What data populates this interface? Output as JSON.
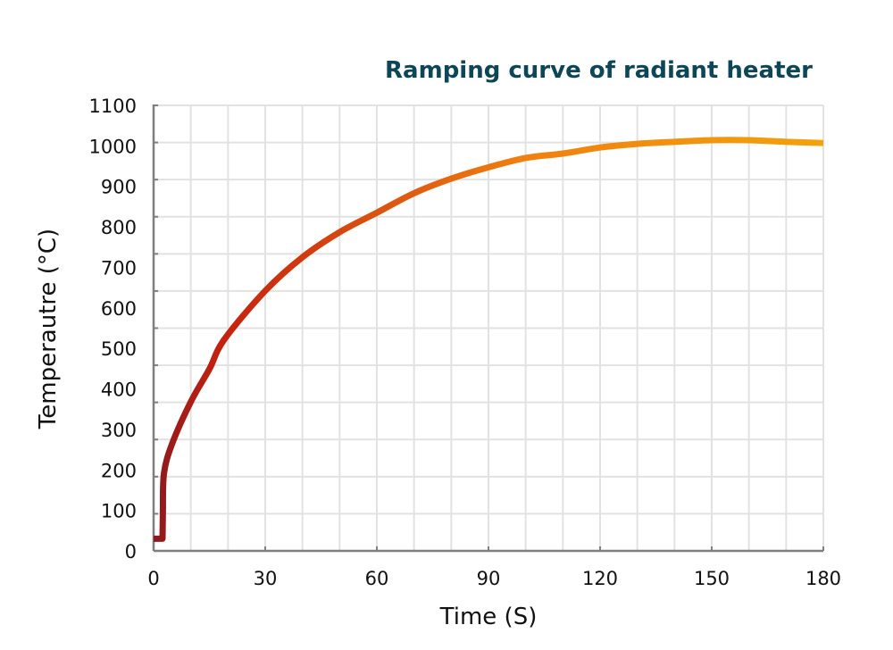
{
  "chart_data": {
    "type": "line",
    "title": "Ramping curve of radiant heater",
    "xlabel": "Time (S)",
    "ylabel": "Temperautre (°C)",
    "xlim": [
      0,
      180
    ],
    "ylim": [
      0,
      1100
    ],
    "x_ticks": [
      0,
      30,
      60,
      90,
      120,
      150,
      180
    ],
    "y_ticks": [
      0,
      100,
      200,
      300,
      400,
      500,
      600,
      700,
      800,
      900,
      1000,
      1100
    ],
    "grid": true,
    "legend": "none",
    "colors": {
      "start": "#8b1a1f",
      "mid": "#e84a0c",
      "end": "#f2a20c",
      "title": "#0d4656",
      "grid": "#e2e2e2",
      "axis": "#7f7f7f"
    },
    "series": [
      {
        "x": [
          0,
          2.4,
          2.5,
          2.8,
          5,
          10,
          15,
          19,
          30,
          40,
          50,
          60,
          70,
          80,
          90,
          100,
          110,
          120,
          130,
          140,
          150,
          160,
          170,
          180
        ],
        "y": [
          30,
          30,
          100,
          192,
          265,
          368,
          449,
          522,
          642,
          725,
          787,
          835,
          883,
          919,
          947,
          970,
          981,
          996,
          1005,
          1010,
          1014,
          1014,
          1010,
          1007
        ]
      }
    ]
  }
}
